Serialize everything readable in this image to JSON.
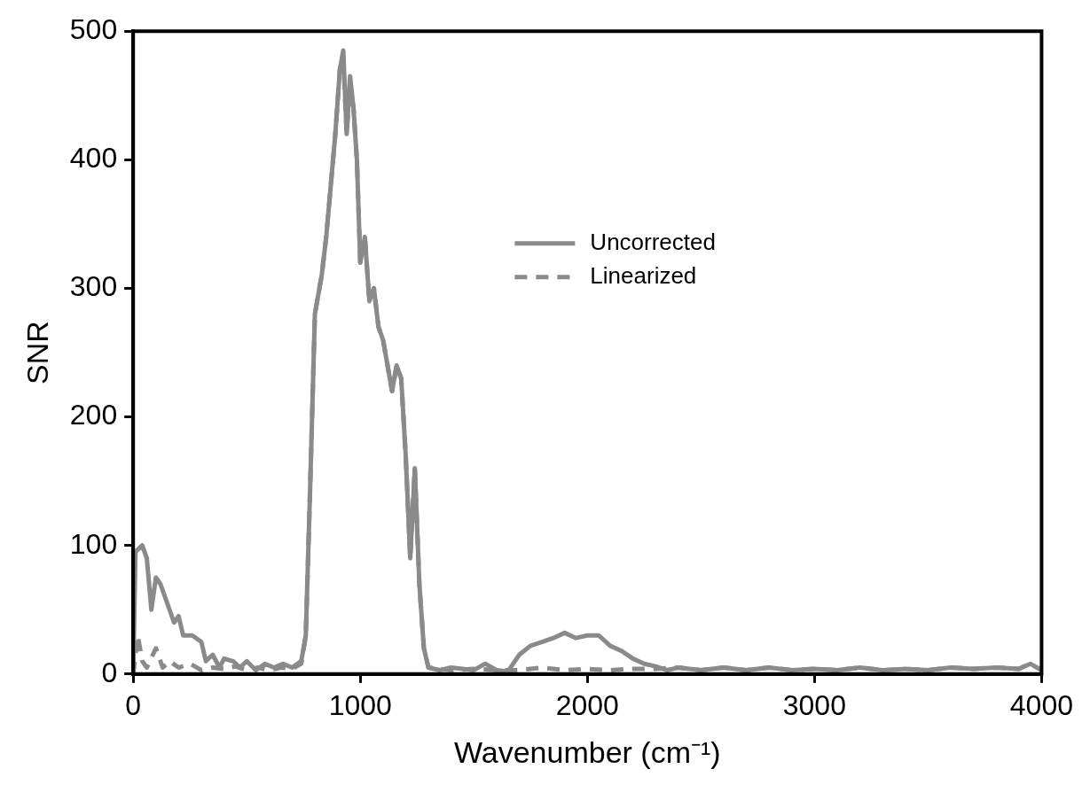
{
  "chart_data": {
    "type": "line",
    "xlabel": "Wavenumber (cm⁻¹)",
    "ylabel": "SNR",
    "xlim": [
      0,
      4000
    ],
    "xticks": [
      0,
      1000,
      2000,
      3000,
      4000
    ],
    "ylim": [
      0,
      500
    ],
    "yticks": [
      0,
      100,
      200,
      300,
      400,
      500
    ],
    "grid": false,
    "legend": "center",
    "marker": "none",
    "series": [
      {
        "name": "Uncorrected",
        "color": "#8a8a8a",
        "line_style": "solid",
        "x": [
          0,
          10,
          40,
          60,
          80,
          100,
          120,
          150,
          180,
          200,
          220,
          260,
          300,
          320,
          350,
          380,
          400,
          440,
          470,
          500,
          540,
          580,
          620,
          660,
          700,
          740,
          760,
          780,
          800,
          830,
          850,
          870,
          890,
          910,
          925,
          940,
          955,
          970,
          985,
          1000,
          1020,
          1040,
          1060,
          1080,
          1100,
          1120,
          1140,
          1160,
          1180,
          1200,
          1220,
          1240,
          1260,
          1280,
          1300,
          1350,
          1400,
          1500,
          1550,
          1600,
          1650,
          1700,
          1750,
          1800,
          1850,
          1900,
          1950,
          2000,
          2050,
          2100,
          2150,
          2200,
          2250,
          2300,
          2350,
          2400,
          2500,
          2600,
          2700,
          2800,
          2900,
          3000,
          3100,
          3200,
          3300,
          3400,
          3500,
          3600,
          3700,
          3800,
          3900,
          3950,
          4000
        ],
        "values": [
          0,
          95,
          100,
          90,
          50,
          75,
          70,
          55,
          40,
          45,
          30,
          30,
          25,
          10,
          15,
          5,
          12,
          10,
          5,
          10,
          3,
          8,
          5,
          8,
          5,
          10,
          30,
          150,
          280,
          310,
          340,
          380,
          420,
          470,
          485,
          420,
          465,
          440,
          400,
          320,
          340,
          290,
          300,
          270,
          260,
          240,
          220,
          240,
          230,
          170,
          90,
          160,
          70,
          20,
          5,
          3,
          5,
          3,
          8,
          3,
          2,
          15,
          22,
          25,
          28,
          32,
          28,
          30,
          30,
          22,
          18,
          12,
          8,
          6,
          3,
          5,
          3,
          5,
          3,
          5,
          3,
          4,
          3,
          5,
          3,
          4,
          3,
          5,
          4,
          5,
          4,
          8,
          3
        ]
      },
      {
        "name": "Linearized",
        "color": "#8a8a8a",
        "line_style": "dashed",
        "x": [
          0,
          20,
          40,
          60,
          100,
          130,
          160,
          200,
          250,
          300,
          350,
          400,
          450,
          500,
          550,
          600,
          650,
          700,
          740,
          760,
          780,
          800,
          830,
          850,
          870,
          890,
          910,
          925,
          940,
          955,
          970,
          985,
          1000,
          1020,
          1040,
          1060,
          1080,
          1100,
          1120,
          1140,
          1160,
          1180,
          1200,
          1220,
          1240,
          1260,
          1280,
          1300,
          1400,
          1500,
          1600,
          1700,
          1800,
          1900,
          2000,
          2100,
          2200,
          2300,
          2400,
          2500,
          2600,
          2700,
          2800,
          2900,
          3000,
          3100,
          3200,
          3300,
          3400,
          3500,
          3600,
          3700,
          3800,
          3900,
          3950,
          4000
        ],
        "values": [
          0,
          30,
          10,
          5,
          20,
          5,
          10,
          5,
          8,
          3,
          5,
          4,
          6,
          3,
          5,
          3,
          5,
          4,
          8,
          30,
          150,
          280,
          310,
          340,
          380,
          420,
          470,
          480,
          420,
          460,
          440,
          400,
          320,
          340,
          290,
          300,
          270,
          260,
          240,
          220,
          240,
          230,
          170,
          90,
          160,
          70,
          20,
          5,
          3,
          4,
          3,
          3,
          5,
          3,
          4,
          3,
          4,
          4,
          5,
          3,
          5,
          3,
          5,
          3,
          4,
          3,
          5,
          3,
          4,
          3,
          5,
          4,
          5,
          4,
          8,
          3
        ]
      }
    ]
  }
}
